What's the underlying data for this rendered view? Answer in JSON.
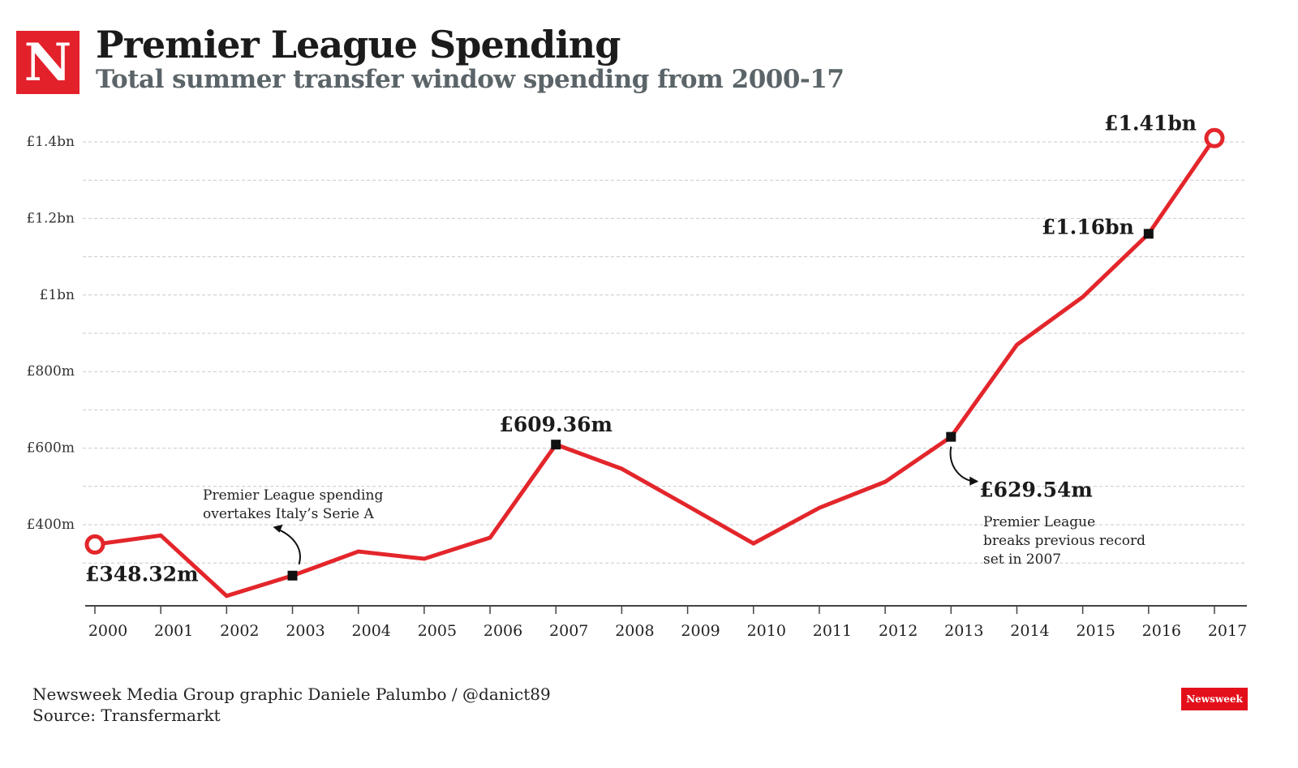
{
  "header": {
    "logo_letter": "N",
    "title": "Premier League Spending",
    "subtitle": "Total summer transfer window spending from 2000-17"
  },
  "footer": {
    "credit": "Newsweek Media Group graphic Daniele Palumbo / @danict89",
    "source": "Source: Transfermarkt",
    "brand": "Newsweek"
  },
  "chart_data": {
    "type": "line",
    "title": "Premier League Spending",
    "subtitle": "Total summer transfer window spending from 2000-17",
    "x": [
      "2000",
      "2001",
      "2002",
      "2003",
      "2004",
      "2005",
      "2006",
      "2007",
      "2008",
      "2009",
      "2010",
      "2011",
      "2012",
      "2013",
      "2014",
      "2015",
      "2016",
      "2017"
    ],
    "values_millions_gbp": [
      348.32,
      372,
      214,
      267,
      330,
      311,
      366,
      609.36,
      546,
      449,
      351,
      444,
      512,
      629.54,
      870,
      995,
      1160,
      1410
    ],
    "y_ticks": [
      {
        "value": 400,
        "label": "£400m"
      },
      {
        "value": 600,
        "label": "£600m"
      },
      {
        "value": 800,
        "label": "£800m"
      },
      {
        "value": 1000,
        "label": "£1bn"
      },
      {
        "value": 1200,
        "label": "£1.2bn"
      },
      {
        "value": 1400,
        "label": "£1.4bn"
      }
    ],
    "ylim": [
      188,
      1400
    ],
    "grid": true,
    "line_color": "#e3262b",
    "point_labels": [
      {
        "year": "2000",
        "text": "£348.32m",
        "marker": "circle"
      },
      {
        "year": "2003",
        "text": "",
        "marker": "square"
      },
      {
        "year": "2007",
        "text": "£609.36m",
        "marker": "square"
      },
      {
        "year": "2013",
        "text": "£629.54m",
        "marker": "square"
      },
      {
        "year": "2016",
        "text": "£1.16bn",
        "marker": "square"
      },
      {
        "year": "2017",
        "text": "£1.41bn",
        "marker": "circle"
      }
    ],
    "annotations": [
      {
        "year": "2003",
        "lines": [
          "Premier League spending",
          "overtakes Italy’s Serie A"
        ]
      },
      {
        "year": "2013",
        "lines": [
          "Premier League",
          "breaks previous record",
          "set in 2007"
        ]
      }
    ]
  }
}
